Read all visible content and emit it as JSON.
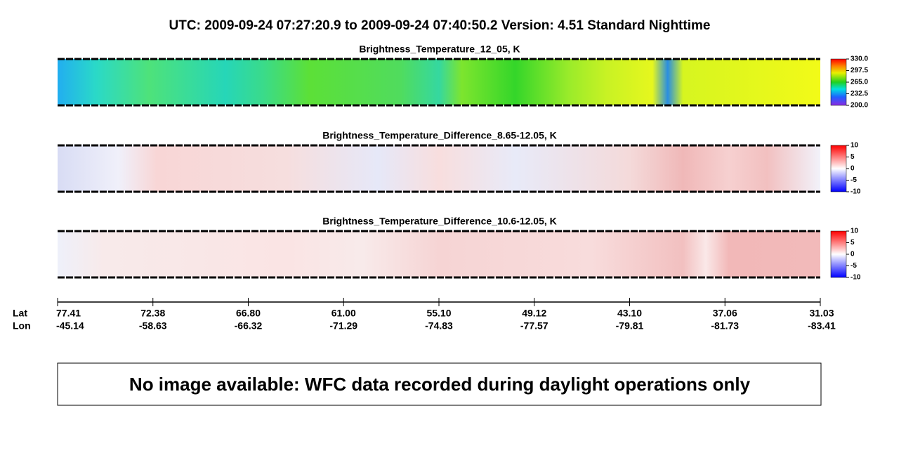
{
  "header": {
    "title": "UTC:  2009-09-24   07:27:20.9  to  2009-09-24   07:40:50.2    Version: 4.51  Standard Nighttime"
  },
  "panels": [
    {
      "title": "Brightness_Temperature_12_05, K",
      "colorbar_ticks": [
        "330.0",
        "297.5",
        "265.0",
        "232.5",
        "200.0"
      ]
    },
    {
      "title": "Brightness_Temperature_Difference_8.65-12.05, K",
      "colorbar_ticks": [
        "10",
        "5",
        "0",
        "-5",
        "-10"
      ]
    },
    {
      "title": "Brightness_Temperature_Difference_10.6-12.05, K",
      "colorbar_ticks": [
        "10",
        "5",
        "0",
        "-5",
        "-10"
      ]
    }
  ],
  "axis": {
    "lat_label": "Lat",
    "lon_label": "Lon",
    "lat": [
      "77.41",
      "72.38",
      "66.80",
      "61.00",
      "55.10",
      "49.12",
      "43.10",
      "37.06",
      "31.03"
    ],
    "lon": [
      "-45.14",
      "-58.63",
      "-66.32",
      "-71.29",
      "-74.83",
      "-77.57",
      "-79.81",
      "-81.73",
      "-83.41"
    ]
  },
  "message": "No image available: WFC data recorded during daylight operations only"
}
